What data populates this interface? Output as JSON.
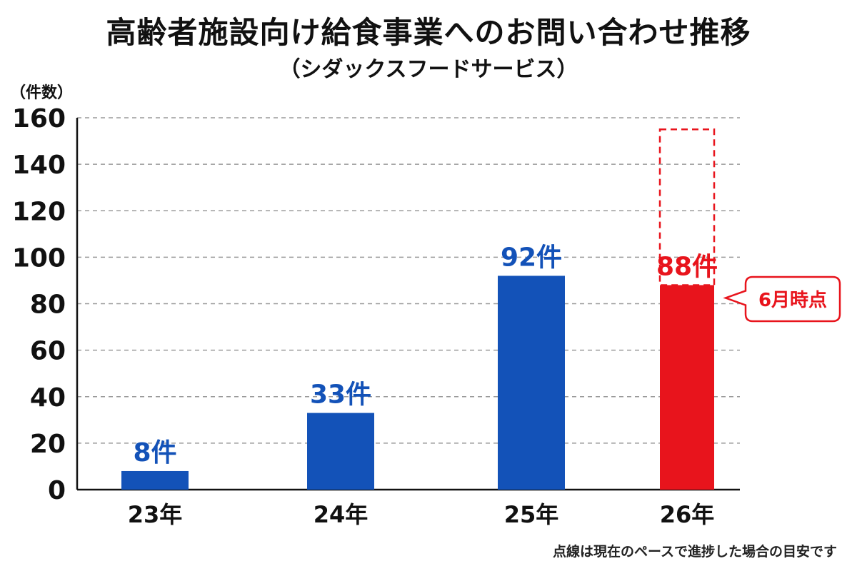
{
  "title": "高齢者施設向け給食事業へのお問い合わせ推移",
  "subtitle": "（シダックスフードサービス）",
  "note": "点線は現在のペースで進捗した場合の目安です",
  "chart_data": {
    "type": "bar",
    "ylabel": "（件数）",
    "xlabel": "",
    "ylim": [
      0,
      160
    ],
    "yticks": [
      0,
      20,
      40,
      60,
      80,
      100,
      120,
      140,
      160
    ],
    "grid": true,
    "categories": [
      "23年",
      "24年",
      "25年",
      "26年"
    ],
    "values": [
      8,
      33,
      92,
      88
    ],
    "data_labels": [
      "8件",
      "33件",
      "92件",
      "88件"
    ],
    "projection": {
      "category": "26年",
      "value": 155,
      "style": "dashed"
    },
    "annotation": {
      "category": "26年",
      "text": "6月時点"
    },
    "colors": {
      "bar": "#1352b8",
      "highlight": "#e8141c",
      "grid": "#9a9a9a",
      "axis": "#111111"
    }
  }
}
